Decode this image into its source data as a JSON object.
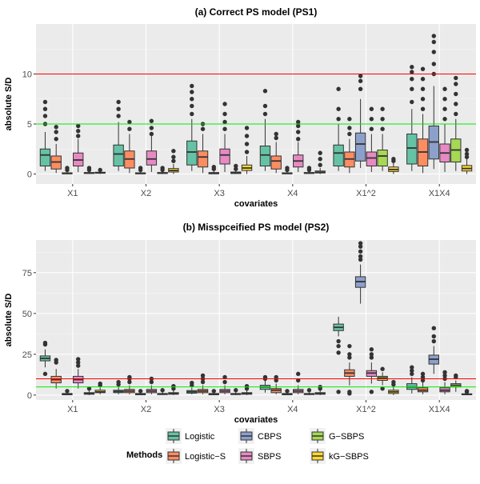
{
  "methods": [
    {
      "name": "Logistic",
      "color": "#66c2a5"
    },
    {
      "name": "Logistic−S",
      "color": "#fc8d62"
    },
    {
      "name": "CBPS",
      "color": "#8da0cb"
    },
    {
      "name": "SBPS",
      "color": "#e78ac3"
    },
    {
      "name": "G−SBPS",
      "color": "#a6d854"
    },
    {
      "name": "kG−SBPS",
      "color": "#ffd92f"
    }
  ],
  "legend": {
    "title": "Methods",
    "position": "bottom"
  },
  "chart_data": [
    {
      "type": "boxplot",
      "title": "(a) Correct PS model (PS1)",
      "xlabel": "covariates",
      "ylabel": "absolute S/D",
      "categories": [
        "X1",
        "X2",
        "X3",
        "X4",
        "X1^2",
        "X1X4"
      ],
      "ylim": [
        -1,
        15
      ],
      "yticks": [
        0,
        5,
        10
      ],
      "hlines": [
        {
          "value": 10,
          "color": "#ff0000"
        },
        {
          "value": 5,
          "color": "#00ee00"
        }
      ],
      "series": [
        {
          "name": "Logistic",
          "boxes": [
            [
              0.3,
              0.8,
              1.9,
              2.5,
              4.2
            ],
            [
              0.3,
              0.8,
              2.0,
              2.9,
              5.2
            ],
            [
              0.3,
              0.9,
              2.2,
              3.3,
              5.5
            ],
            [
              0.3,
              0.8,
              1.9,
              2.8,
              5.5
            ],
            [
              0.3,
              0.8,
              2.1,
              2.9,
              5.0
            ],
            [
              0.3,
              1.0,
              2.6,
              4.0,
              6.5
            ]
          ],
          "outliers": [
            [
              5.0,
              5.8,
              6.5,
              7.2
            ],
            [
              5.8,
              6.5,
              7.2
            ],
            [
              6.0,
              6.8,
              7.5,
              8.2,
              8.8
            ],
            [
              6.0,
              6.8,
              8.3
            ],
            [
              5.5,
              6.5,
              8.5
            ],
            [
              7.2,
              8.5,
              9.5,
              10.2,
              10.7
            ]
          ]
        },
        {
          "name": "Logistic−S",
          "boxes": [
            [
              0.1,
              0.5,
              1.2,
              1.8,
              3.0
            ],
            [
              0.1,
              0.6,
              1.5,
              2.3,
              4.0
            ],
            [
              0.1,
              0.7,
              1.7,
              2.3,
              4.0
            ],
            [
              0.1,
              0.5,
              1.3,
              1.8,
              3.2
            ],
            [
              0.1,
              0.7,
              1.5,
              2.2,
              3.5
            ],
            [
              0.1,
              0.8,
              2.2,
              3.5,
              6.0
            ]
          ],
          "outliers": [
            [
              3.5,
              4.2,
              4.7
            ],
            [
              4.5,
              5.2
            ],
            [
              4.5,
              5.0
            ],
            [
              3.6,
              4.0
            ],
            [
              4.0,
              4.6,
              5.5
            ],
            [
              6.5,
              7.5,
              8.5,
              9.5,
              10.5
            ]
          ]
        },
        {
          "name": "CBPS",
          "boxes": [
            [
              0.0,
              0.02,
              0.06,
              0.12,
              0.25
            ],
            [
              0.0,
              0.02,
              0.06,
              0.12,
              0.25
            ],
            [
              0.0,
              0.02,
              0.08,
              0.15,
              0.35
            ],
            [
              0.0,
              0.02,
              0.06,
              0.12,
              0.25
            ],
            [
              0.6,
              1.3,
              3.0,
              4.1,
              7.5
            ],
            [
              0.5,
              1.5,
              3.2,
              4.8,
              8.8
            ]
          ],
          "outliers": [
            [
              0.4,
              0.6
            ],
            [
              0.4,
              0.6
            ],
            [
              0.5,
              0.7
            ],
            [
              0.4,
              0.6
            ],
            [
              8.5,
              9.3,
              9.8
            ],
            [
              10.0,
              11.0,
              12.2,
              13.2,
              13.8
            ]
          ]
        },
        {
          "name": "SBPS",
          "boxes": [
            [
              0.2,
              0.8,
              1.4,
              2.1,
              3.5
            ],
            [
              0.2,
              0.9,
              1.5,
              2.3,
              3.8
            ],
            [
              0.2,
              1.0,
              1.9,
              2.5,
              4.0
            ],
            [
              0.2,
              0.7,
              1.3,
              1.9,
              3.2
            ],
            [
              0.2,
              0.8,
              1.6,
              2.2,
              4.0
            ],
            [
              0.2,
              1.2,
              2.1,
              3.0,
              5.0
            ]
          ],
          "outliers": [
            [
              3.8,
              4.3,
              4.8
            ],
            [
              4.0,
              4.6,
              5.3
            ],
            [
              4.5,
              5.2,
              6.0,
              7.0
            ],
            [
              3.5,
              4.2,
              4.8,
              5.2
            ],
            [
              4.5,
              5.5,
              6.5
            ],
            [
              5.5,
              6.5,
              7.5,
              8.5
            ]
          ]
        },
        {
          "name": "G−SBPS",
          "boxes": [
            [
              0.0,
              0.05,
              0.1,
              0.15,
              0.3
            ],
            [
              0.0,
              0.05,
              0.1,
              0.15,
              0.3
            ],
            [
              0.0,
              0.05,
              0.1,
              0.2,
              0.4
            ],
            [
              0.0,
              0.05,
              0.1,
              0.15,
              0.3
            ],
            [
              0.3,
              0.8,
              1.8,
              2.4,
              4.0
            ],
            [
              0.3,
              1.2,
              2.4,
              3.5,
              5.5
            ]
          ],
          "outliers": [
            [
              0.4,
              0.6
            ],
            [
              0.4,
              0.6
            ],
            [
              0.5,
              0.8
            ],
            [
              0.4,
              0.6
            ],
            [
              4.5,
              5.5,
              6.5
            ],
            [
              6.0,
              7.0,
              8.0,
              9.0,
              9.6
            ]
          ]
        },
        {
          "name": "kG−SBPS",
          "boxes": [
            [
              0.0,
              0.07,
              0.12,
              0.18,
              0.3
            ],
            [
              0.0,
              0.2,
              0.35,
              0.55,
              1.0
            ],
            [
              0.0,
              0.35,
              0.6,
              0.9,
              1.8
            ],
            [
              0.0,
              0.1,
              0.18,
              0.3,
              0.6
            ],
            [
              0.0,
              0.25,
              0.45,
              0.7,
              1.1
            ],
            [
              0.0,
              0.3,
              0.55,
              0.85,
              1.5
            ]
          ],
          "outliers": [
            [
              0.4
            ],
            [
              1.3,
              1.7,
              2.3
            ],
            [
              2.2,
              3.0,
              3.8,
              4.6
            ],
            [
              0.9,
              1.5,
              2.1
            ],
            [
              1.3,
              1.5
            ],
            [
              1.7,
              2.0,
              2.4
            ]
          ]
        }
      ]
    },
    {
      "type": "boxplot",
      "title": "(b) Misspceified PS model (PS2)",
      "xlabel": "covariates",
      "ylabel": "absolute S/D",
      "categories": [
        "X1",
        "X2",
        "X3",
        "X4",
        "X1^2",
        "X1X4"
      ],
      "ylim": [
        -3,
        95
      ],
      "yticks": [
        0,
        25,
        50,
        75
      ],
      "hlines": [
        {
          "value": 10,
          "color": "#ff0000"
        },
        {
          "value": 5,
          "color": "#00ee00"
        }
      ],
      "series": [
        {
          "name": "Logistic",
          "boxes": [
            [
              17,
              21,
              22.5,
              24,
              28
            ],
            [
              0.5,
              1.5,
              2.2,
              3.0,
              5.0
            ],
            [
              0.5,
              1.2,
              2.0,
              2.8,
              4.5
            ],
            [
              1.5,
              3.5,
              5.0,
              6.0,
              9.0
            ],
            [
              36,
              39.5,
              41.5,
              43.5,
              48
            ],
            [
              1,
              3.5,
              5,
              7,
              11
            ]
          ],
          "outliers": [
            [
              13,
              31,
              32
            ],
            [
              6.5,
              8
            ],
            [
              6,
              7.5
            ],
            [
              10,
              11
            ],
            [
              30,
              33,
              26,
              2
            ],
            [
              13,
              15,
              17
            ]
          ]
        },
        {
          "name": "Logistic−S",
          "boxes": [
            [
              4,
              7.5,
              9.5,
              11.5,
              16
            ],
            [
              0.5,
              1.5,
              2.5,
              3.5,
              6
            ],
            [
              0.5,
              1.5,
              2.5,
              3.5,
              6
            ],
            [
              0.5,
              1.5,
              3,
              4,
              7
            ],
            [
              6,
              11.5,
              13.5,
              15.5,
              20
            ],
            [
              0.5,
              2,
              3,
              4.5,
              8
            ]
          ],
          "outliers": [
            [
              20,
              21.5
            ],
            [
              8,
              10,
              11
            ],
            [
              8,
              10,
              12
            ],
            [
              9,
              11
            ],
            [
              23,
              25,
              30,
              1,
              2
            ],
            [
              9,
              11,
              13
            ]
          ]
        },
        {
          "name": "CBPS",
          "boxes": [
            [
              0,
              0.2,
              0.5,
              1,
              2
            ],
            [
              0,
              0.2,
              0.5,
              1,
              2
            ],
            [
              0,
              0.2,
              0.5,
              1,
              2
            ],
            [
              0,
              0.2,
              0.5,
              1,
              2
            ],
            [
              56,
              66,
              69.5,
              72.5,
              80
            ],
            [
              13,
              19,
              22,
              24.5,
              30
            ]
          ],
          "outliers": [
            [
              2.5
            ],
            [
              2.5
            ],
            [
              2.5
            ],
            [
              2.5
            ],
            [
              83,
              85,
              88,
              91,
              93
            ],
            [
              33,
              36,
              41
            ]
          ]
        },
        {
          "name": "SBPS",
          "boxes": [
            [
              4,
              7.5,
              9.5,
              11.5,
              16
            ],
            [
              0.5,
              1.5,
              2.5,
              3.5,
              6
            ],
            [
              0.5,
              1.5,
              2.5,
              3.5,
              6
            ],
            [
              0.5,
              1.5,
              2.5,
              3.5,
              6
            ],
            [
              7,
              11.5,
              13.5,
              15,
              20
            ],
            [
              0.5,
              2,
              3,
              4.5,
              8
            ]
          ],
          "outliers": [
            [
              18,
              20,
              22
            ],
            [
              8,
              10
            ],
            [
              8,
              11
            ],
            [
              9,
              13
            ],
            [
              23,
              25,
              28,
              2
            ],
            [
              10,
              12,
              14
            ]
          ]
        },
        {
          "name": "G−SBPS",
          "boxes": [
            [
              0,
              0.5,
              1,
              1.5,
              3
            ],
            [
              0,
              0.3,
              0.7,
              1,
              2
            ],
            [
              0,
              0.3,
              0.7,
              1,
              2
            ],
            [
              0,
              0.3,
              0.7,
              1,
              2
            ],
            [
              6,
              9,
              10.5,
              11.5,
              14
            ],
            [
              2,
              5,
              6,
              7,
              9
            ]
          ],
          "outliers": [
            [
              4
            ],
            [
              3
            ],
            [
              3
            ],
            [
              3
            ],
            [
              4,
              16
            ],
            [
              11,
              12
            ]
          ]
        },
        {
          "name": "kG−SBPS",
          "boxes": [
            [
              0.5,
              1.5,
              2,
              3,
              4.5
            ],
            [
              0,
              0.5,
              1,
              1.5,
              3
            ],
            [
              0,
              0.5,
              1,
              1.5,
              3
            ],
            [
              0,
              0.5,
              1,
              1.5,
              3
            ],
            [
              0,
              1,
              2,
              3,
              5
            ],
            [
              0,
              0.2,
              0.5,
              0.8,
              1.5
            ]
          ],
          "outliers": [
            [
              6,
              7
            ],
            [
              4,
              5.5
            ],
            [
              4,
              5.5
            ],
            [
              4,
              5
            ],
            [
              6.5,
              8
            ],
            [
              2,
              2.5
            ]
          ]
        }
      ]
    }
  ]
}
